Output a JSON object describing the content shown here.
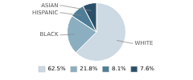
{
  "chart_data": {
    "type": "pie",
    "categories": [
      "WHITE",
      "BLACK",
      "HISPANIC",
      "ASIAN"
    ],
    "values": [
      62.5,
      21.8,
      8.1,
      7.6
    ],
    "value_labels": [
      "62.5%",
      "21.8%",
      "8.1%",
      "7.6%"
    ],
    "colors": [
      "#cdd9e3",
      "#8bafc0",
      "#4e7d97",
      "#2b4f68"
    ],
    "legend": "bottom"
  }
}
